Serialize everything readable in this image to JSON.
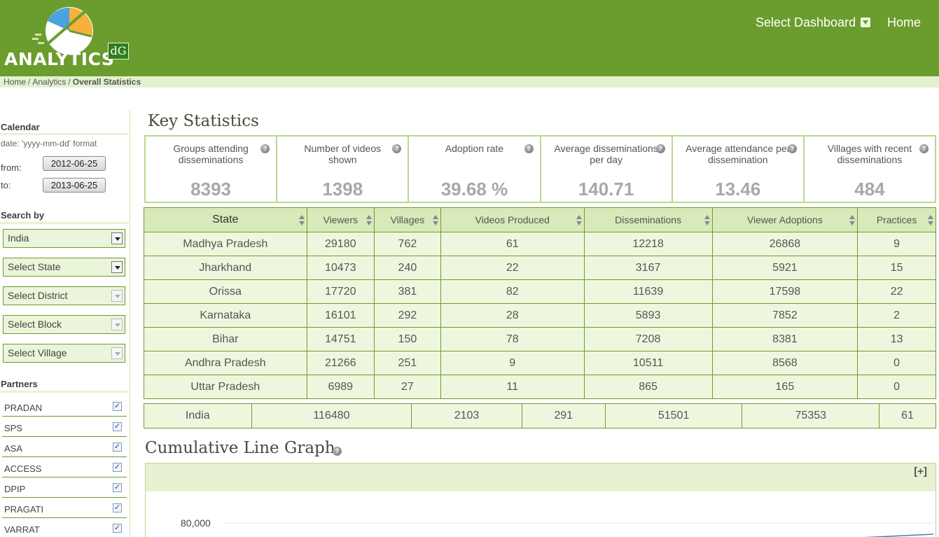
{
  "header": {
    "logo_text": "ANALYTICS",
    "logo_badge": "dG",
    "nav_dashboard": "Select Dashboard",
    "nav_home": "Home",
    "brand_color": "#6b9c2e"
  },
  "breadcrumb": [
    "Home",
    "Analytics",
    "Overall Statistics"
  ],
  "sidebar": {
    "calendar_heading": "Calendar",
    "date_format": "date: 'yyyy-mm-dd' format",
    "from_label": "from:",
    "from_value": "2012-06-25",
    "to_label": "to:",
    "to_value": "2013-06-25",
    "search_heading": "Search by",
    "selects": [
      "India",
      "Select State",
      "Select District",
      "Select Block",
      "Select Village"
    ],
    "partners_heading": "Partners",
    "partners": [
      "PRADAN",
      "SPS",
      "ASA",
      "ACCESS",
      "DPIP",
      "PRAGATI",
      "VARRAT"
    ]
  },
  "key_statistics": {
    "title": "Key Statistics",
    "stats": [
      {
        "label": "Groups attending disseminations",
        "value": "8393"
      },
      {
        "label": "Number of videos shown",
        "value": "1398"
      },
      {
        "label": "Adoption rate",
        "value": "39.68 %"
      },
      {
        "label": "Average disseminations per day",
        "value": "140.71"
      },
      {
        "label": "Average attendance per dissemination",
        "value": "13.46"
      },
      {
        "label": "Villages with recent disseminations",
        "value": "484"
      }
    ]
  },
  "state_table": {
    "columns": [
      "State",
      "Viewers",
      "Villages",
      "Videos Produced",
      "Disseminations",
      "Viewer Adoptions",
      "Practices"
    ],
    "rows": [
      [
        "Madhya Pradesh",
        "29180",
        "762",
        "61",
        "12218",
        "26868",
        "9"
      ],
      [
        "Jharkhand",
        "10473",
        "240",
        "22",
        "3167",
        "5921",
        "15"
      ],
      [
        "Orissa",
        "17720",
        "381",
        "82",
        "11639",
        "17598",
        "22"
      ],
      [
        "Karnataka",
        "16101",
        "292",
        "28",
        "5893",
        "7852",
        "2"
      ],
      [
        "Bihar",
        "14751",
        "150",
        "78",
        "7208",
        "8381",
        "13"
      ],
      [
        "Andhra Pradesh",
        "21266",
        "251",
        "9",
        "10511",
        "8568",
        "0"
      ],
      [
        "Uttar Pradesh",
        "6989",
        "27",
        "11",
        "865",
        "165",
        "0"
      ]
    ],
    "total": [
      "India",
      "116480",
      "2103",
      "291",
      "51501",
      "75353",
      "61"
    ]
  },
  "graph": {
    "title": "Cumulative Line Graph",
    "expand_label": "[+]",
    "y_tick": "80,000"
  }
}
